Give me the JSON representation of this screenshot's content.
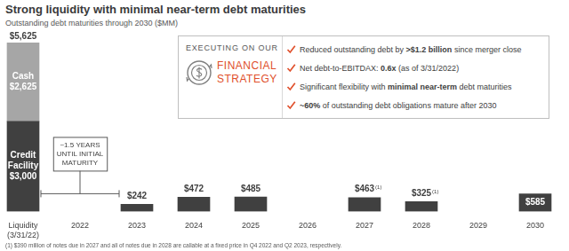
{
  "chart_data": {
    "type": "bar",
    "title": "Strong liquidity with minimal near-term debt maturities",
    "subtitle": "Outstanding debt maturities through 2030 ($MM)",
    "categories": [
      "Liquidity (3/31/22)",
      "2022",
      "2023",
      "2024",
      "2025",
      "2026",
      "2027",
      "2028",
      "2029",
      "2030"
    ],
    "series": [
      {
        "name": "Credit Facility",
        "color": "#404040",
        "values": [
          3000,
          null,
          null,
          null,
          null,
          null,
          null,
          null,
          null,
          null
        ],
        "value_labels": [
          "$3,000",
          null,
          null,
          null,
          null,
          null,
          null,
          null,
          null,
          null
        ]
      },
      {
        "name": "Cash",
        "color": "#a6a6a6",
        "values": [
          2625,
          null,
          null,
          null,
          null,
          null,
          null,
          null,
          null,
          null
        ],
        "value_labels": [
          "$2,625",
          null,
          null,
          null,
          null,
          null,
          null,
          null,
          null,
          null
        ]
      },
      {
        "color": "#404040",
        "values": [
          null,
          null,
          242,
          472,
          485,
          null,
          463,
          325,
          null,
          585
        ],
        "value_labels": [
          null,
          null,
          "$242",
          "$472",
          "$485",
          null,
          "$463",
          "$325",
          null,
          "$585"
        ]
      }
    ],
    "ylim": [
      0,
      5625
    ],
    "stacked": true,
    "grid": false,
    "data_labels": true,
    "tick_labels": "x",
    "annotations": [
      {
        "text": "$5,625",
        "category": "Liquidity (3/31/22)",
        "value": 5625
      },
      {
        "text": "(1)",
        "category": "2027",
        "value": 463
      },
      {
        "text": "(1)",
        "category": "2028",
        "value": 325
      },
      {
        "text": "~1.5 YEARS UNTIL INITIAL MATURITY",
        "from": "Liquidity (3/31/22)",
        "to": "2023"
      }
    ],
    "footnote": "(1) $390 million of notes due in 2027 and all of notes due in 2028 are callable at a fixed price in Q4 2022 and Q2 2023, respectively."
  },
  "panel": {
    "heading": "EXECUTING ON OUR",
    "emphasis": "FINANCIAL STRATEGY",
    "points": [
      [
        {
          "text": "Reduced outstanding debt by "
        },
        {
          "text": ">$1.2 billion",
          "bold": true
        },
        {
          "text": " since merger close"
        }
      ],
      [
        {
          "text": "Net debt-to-EBITDAX: "
        },
        {
          "text": "0.6x",
          "bold": true
        },
        {
          "text": " (as of 3/31/2022)"
        }
      ],
      [
        {
          "text": "Significant flexibility with "
        },
        {
          "text": "minimal near-term",
          "bold": true
        },
        {
          "text": " debt maturities"
        }
      ],
      [
        {
          "text": "~60%",
          "bold": true
        },
        {
          "text": " of outstanding debt obligations mature after 2030"
        }
      ]
    ]
  }
}
